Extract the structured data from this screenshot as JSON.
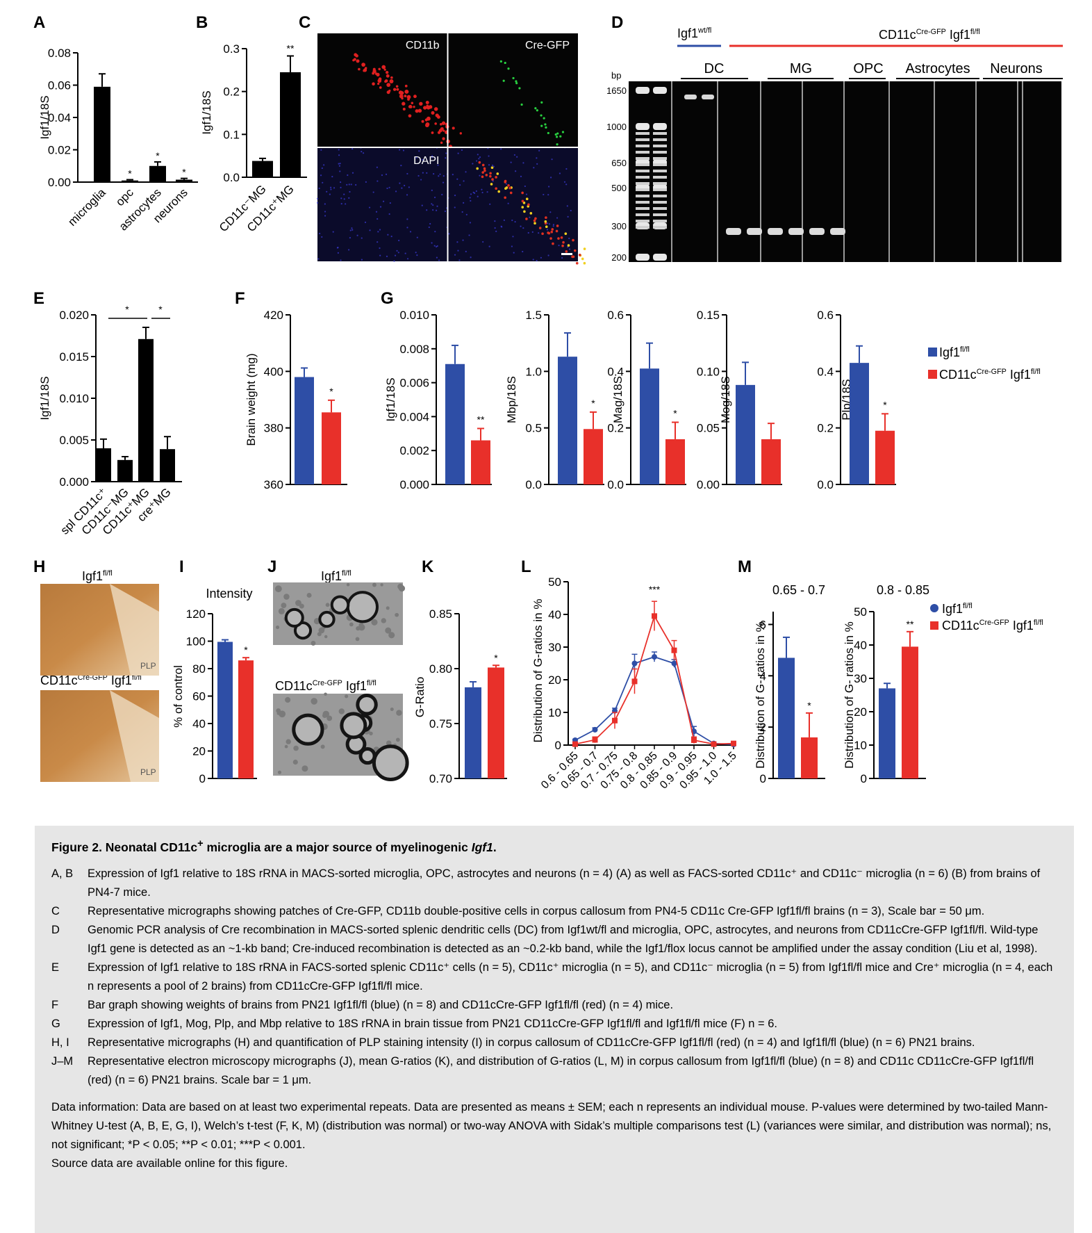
{
  "panels": {
    "A": {
      "label": "A",
      "ylabel": "Igf1/18S",
      "yticks": [
        "0.00",
        "0.02",
        "0.04",
        "0.06",
        "0.08"
      ],
      "ymax": 0.08,
      "categories": [
        "microglia",
        "opc",
        "astrocytes",
        "neurons"
      ],
      "values": [
        0.059,
        0.001,
        0.01,
        0.0015
      ],
      "errors": [
        0.008,
        0.0005,
        0.0025,
        0.0008
      ],
      "sig": [
        "",
        "*",
        "*",
        "*"
      ]
    },
    "B": {
      "label": "B",
      "ylabel": "Igf1/18S",
      "yticks": [
        "0.0",
        "0.1",
        "0.2",
        "0.3"
      ],
      "ymax": 0.3,
      "categories": [
        "CD11c⁻MG",
        "CD11c⁺MG"
      ],
      "values": [
        0.038,
        0.245
      ],
      "errors": [
        0.006,
        0.038
      ],
      "sig": [
        "",
        "**"
      ]
    },
    "C": {
      "label": "C",
      "quadrants": [
        "CD11b",
        "Cre-GFP",
        "DAPI",
        ""
      ]
    },
    "D": {
      "label": "D",
      "wt": "Igf1",
      "wt_sup": "wt/fl",
      "cre": "CD11c",
      "cre_sup": "Cre-GFP",
      "cre_gene": "Igf1",
      "cre_gene_sup": "fl/fl",
      "groups": [
        "DC",
        "MG",
        "OPC",
        "Astrocytes",
        "Neurons"
      ],
      "bp_title": "bp",
      "bp": [
        "1650",
        "1000",
        "650",
        "500",
        "300",
        "200"
      ]
    },
    "E": {
      "label": "E",
      "ylabel": "Igf1/18S",
      "yticks": [
        "0.000",
        "0.005",
        "0.010",
        "0.015",
        "0.020"
      ],
      "ymax": 0.02,
      "categories": [
        "spl CD11c⁺",
        "CD11c⁻MG",
        "CD11c⁺MG",
        "cre⁺MG"
      ],
      "values": [
        0.004,
        0.0026,
        0.0171,
        0.0039
      ],
      "errors": [
        0.0011,
        0.0004,
        0.0014,
        0.0015
      ],
      "sig": [
        "*",
        "*"
      ]
    },
    "F": {
      "label": "F",
      "ylabel": "Brain weight (mg)",
      "yticks": [
        "360",
        "380",
        "400",
        "420"
      ],
      "ymin": 360,
      "ymax": 420,
      "values": [
        398,
        385.5
      ],
      "errors": [
        3.2,
        4.3
      ],
      "sig": [
        "",
        "*"
      ]
    },
    "G": {
      "label": "G",
      "subplots": [
        {
          "ylabel": "Igf1/18S",
          "yticks": [
            "0.000",
            "0.002",
            "0.004",
            "0.006",
            "0.008",
            "0.010"
          ],
          "ymax": 0.01,
          "values": [
            0.0071,
            0.0026
          ],
          "errors": [
            0.0011,
            0.0007
          ],
          "sig": "**"
        },
        {
          "ylabel": "Mbp/18S",
          "yticks": [
            "0.0",
            "0.5",
            "1.0",
            "1.5"
          ],
          "ymax": 1.5,
          "values": [
            1.13,
            0.49
          ],
          "errors": [
            0.21,
            0.15
          ],
          "sig": "*"
        },
        {
          "ylabel": "Mag/18S",
          "yticks": [
            "0.0",
            "0.2",
            "0.4",
            "0.6"
          ],
          "ymax": 0.6,
          "values": [
            0.41,
            0.16
          ],
          "errors": [
            0.09,
            0.06
          ],
          "sig": "*"
        },
        {
          "ylabel": "Mog/18S",
          "yticks": [
            "0.00",
            "0.05",
            "0.10",
            "0.15"
          ],
          "ymax": 0.15,
          "values": [
            0.088,
            0.04
          ],
          "errors": [
            0.02,
            0.014
          ],
          "sig": ""
        },
        {
          "ylabel": "Plp/18S",
          "yticks": [
            "0.0",
            "0.2",
            "0.4",
            "0.6"
          ],
          "ymax": 0.6,
          "values": [
            0.43,
            0.19
          ],
          "errors": [
            0.06,
            0.06
          ],
          "sig": "*"
        }
      ]
    },
    "H": {
      "label": "H",
      "top_title": "Igf1",
      "top_sup": "fl/fl",
      "bot_title": "CD11c",
      "bot_sup": "Cre-GFP",
      "bot_gene": "Igf1",
      "bot_gene_sup": "fl/fl",
      "tag": "PLP"
    },
    "I": {
      "label": "I",
      "title": "Intensity",
      "ylabel": "% of control",
      "yticks": [
        "0",
        "20",
        "40",
        "60",
        "80",
        "100",
        "120"
      ],
      "ymax": 120,
      "values": [
        99.5,
        86
      ],
      "errors": [
        1.5,
        2
      ],
      "sig": [
        "",
        "*"
      ]
    },
    "J": {
      "label": "J",
      "top_title": "Igf1",
      "top_sup": "fl/fl",
      "bot_title": "CD11c",
      "bot_sup": "Cre-GFP",
      "bot_gene": "Igf1",
      "bot_gene_sup": "fl/fl"
    },
    "K": {
      "label": "K",
      "ylabel": "G-Ratio",
      "yticks": [
        "0.70",
        "0.75",
        "0.80",
        "0.85"
      ],
      "ymin": 0.7,
      "ymax": 0.85,
      "values": [
        0.783,
        0.801
      ],
      "errors": [
        0.005,
        0.002
      ],
      "sig": [
        "",
        "*"
      ]
    },
    "L": {
      "label": "L",
      "ylabel": "Distribution of G-ratios in %",
      "yticks": [
        "0",
        "10",
        "20",
        "30",
        "40",
        "50"
      ],
      "ymax": 50,
      "categories": [
        "0.6 - 0.65",
        "0.65 - 0.7",
        "0.7 - 0.75",
        "0.75 - 0.8",
        "0.8 - 0.85",
        "0.85 - 0.9",
        "0.9 - 0.95",
        "0.95 - 1.0",
        "1.0 - 1.5"
      ],
      "sig": "***"
    },
    "M": {
      "label": "M",
      "sub": [
        {
          "title": "0.65 - 0.7",
          "ylabel": "Distribution of G- ratios in %",
          "yticks": [
            "0",
            "2",
            "4",
            "6"
          ],
          "ymax": 6.5,
          "values": [
            4.7,
            1.6
          ],
          "errors": [
            0.8,
            0.95
          ],
          "sig": "*"
        },
        {
          "title": "0.8 - 0.85",
          "ylabel": "Distribution of G- ratios in %",
          "yticks": [
            "0",
            "10",
            "20",
            "30",
            "40",
            "50"
          ],
          "ymax": 50,
          "values": [
            27,
            39.5
          ],
          "errors": [
            1.5,
            4.5
          ],
          "sig": "**"
        }
      ]
    }
  },
  "chart_data": [
    {
      "type": "bar",
      "panel": "A",
      "categories": [
        "microglia",
        "opc",
        "astrocytes",
        "neurons"
      ],
      "values": [
        0.059,
        0.001,
        0.01,
        0.0015
      ],
      "ylabel": "Igf1/18S",
      "ylim": [
        0,
        0.08
      ]
    },
    {
      "type": "bar",
      "panel": "B",
      "categories": [
        "CD11c⁻MG",
        "CD11c⁺MG"
      ],
      "values": [
        0.038,
        0.245
      ],
      "ylabel": "Igf1/18S",
      "ylim": [
        0,
        0.3
      ]
    },
    {
      "type": "bar",
      "panel": "E",
      "categories": [
        "spl CD11c⁺",
        "CD11c⁻MG",
        "CD11c⁺MG",
        "cre⁺MG"
      ],
      "values": [
        0.004,
        0.0026,
        0.0171,
        0.0039
      ],
      "ylabel": "Igf1/18S",
      "ylim": [
        0,
        0.02
      ]
    },
    {
      "type": "bar",
      "panel": "F",
      "series": [
        {
          "name": "Igf1 fl/fl",
          "values": [
            398
          ]
        },
        {
          "name": "CD11c Cre-GFP Igf1 fl/fl",
          "values": [
            385.5
          ]
        }
      ],
      "ylabel": "Brain weight (mg)",
      "ylim": [
        360,
        420
      ]
    },
    {
      "type": "bar",
      "panel": "G",
      "categories": [
        "Igf1/18S",
        "Mbp/18S",
        "Mag/18S",
        "Mog/18S",
        "Plp/18S"
      ],
      "series": [
        {
          "name": "Igf1 fl/fl",
          "values": [
            0.0071,
            1.13,
            0.41,
            0.088,
            0.43
          ]
        },
        {
          "name": "CD11c Cre-GFP Igf1 fl/fl",
          "values": [
            0.0026,
            0.49,
            0.16,
            0.04,
            0.19
          ]
        }
      ]
    },
    {
      "type": "bar",
      "panel": "I",
      "series": [
        {
          "name": "Igf1 fl/fl",
          "values": [
            99.5
          ]
        },
        {
          "name": "CD11c Cre-GFP Igf1 fl/fl",
          "values": [
            86
          ]
        }
      ],
      "title": "Intensity",
      "ylabel": "% of control",
      "ylim": [
        0,
        120
      ]
    },
    {
      "type": "bar",
      "panel": "K",
      "series": [
        {
          "name": "Igf1 fl/fl",
          "values": [
            0.783
          ]
        },
        {
          "name": "CD11c Cre-GFP Igf1 fl/fl",
          "values": [
            0.801
          ]
        }
      ],
      "ylabel": "G-Ratio",
      "ylim": [
        0.7,
        0.85
      ]
    },
    {
      "type": "line",
      "panel": "L",
      "categories": [
        "0.6 - 0.65",
        "0.65 - 0.7",
        "0.7 - 0.75",
        "0.75 - 0.8",
        "0.8 - 0.85",
        "0.85 - 0.9",
        "0.9 - 0.95",
        "0.95 - 1.0",
        "1.0 - 1.5"
      ],
      "series": [
        {
          "name": "Igf1 fl/fl",
          "values": [
            1.5,
            4.7,
            10.5,
            25,
            27,
            25,
            4.2,
            0.5,
            0.2
          ],
          "errors": [
            0.3,
            0.6,
            0.8,
            2.8,
            1.5,
            1.2,
            1.5,
            0.3,
            0.2
          ]
        },
        {
          "name": "CD11c Cre-GFP Igf1 fl/fl",
          "values": [
            0.3,
            1.6,
            7.5,
            19.5,
            39.5,
            29,
            1.5,
            0.3,
            0.5
          ],
          "errors": [
            0.3,
            0.9,
            2.5,
            3.8,
            4.5,
            3,
            1,
            0.3,
            0.3
          ]
        }
      ],
      "ylabel": "Distribution of G-ratios in %",
      "ylim": [
        0,
        50
      ]
    },
    {
      "type": "bar",
      "panel": "M",
      "title": "0.65 - 0.7",
      "series": [
        {
          "name": "Igf1 fl/fl",
          "values": [
            4.7
          ]
        },
        {
          "name": "CD11c Cre-GFP Igf1 fl/fl",
          "values": [
            1.6
          ]
        }
      ],
      "ylabel": "Distribution of G- ratios in %",
      "ylim": [
        0,
        6.5
      ]
    },
    {
      "type": "bar",
      "panel": "M",
      "title": "0.8 - 0.85",
      "series": [
        {
          "name": "Igf1 fl/fl",
          "values": [
            27
          ]
        },
        {
          "name": "CD11c Cre-GFP Igf1 fl/fl",
          "values": [
            39.5
          ]
        }
      ],
      "ylabel": "Distribution of G- ratios in %",
      "ylim": [
        0,
        50
      ]
    }
  ],
  "legend": {
    "a": "Igf1",
    "a_sup": "fl/fl",
    "b": "CD11c",
    "b_sup": "Cre-GFP",
    "b_gene": "Igf1",
    "b_gene_sup": "fl/fl"
  },
  "colors": {
    "blue": "#2e4ea6",
    "red": "#e8302a",
    "black": "#000000"
  },
  "caption": {
    "title_prefix": "Figure 2.   Neonatal CD11c",
    "title_sup": "+",
    "title_mid": " microglia are a major source of myelinogenic ",
    "title_gene": "Igf1",
    "title_end": ".",
    "rows": [
      {
        "label": "A, B",
        "text": "Expression of Igf1 relative to 18S rRNA in MACS-sorted microglia, OPC, astrocytes and neurons (n = 4) (A) as well as FACS-sorted CD11c⁺ and CD11c⁻ microglia (n = 6) (B) from brains of PN4-7 mice."
      },
      {
        "label": "C",
        "text": "Representative micrographs showing patches of Cre-GFP, CD11b double-positive cells in corpus callosum from PN4-5 CD11c Cre-GFP Igf1fl/fl brains (n = 3), Scale bar = 50 μm."
      },
      {
        "label": "D",
        "text": "Genomic PCR analysis of Cre recombination in MACS-sorted splenic dendritic cells (DC) from Igf1wt/fl and microglia, OPC, astrocytes, and neurons from CD11cCre-GFP Igf1fl/fl. Wild-type Igf1 gene is detected as an ~1-kb band; Cre-induced recombination is detected as an ~0.2-kb band, while the Igf1/flox locus cannot be amplified under the assay condition (Liu et al, 1998)."
      },
      {
        "label": "E",
        "text": "Expression of Igf1 relative to 18S rRNA in FACS-sorted splenic CD11c⁺ cells (n = 5), CD11c⁺ microglia (n = 5), and CD11c⁻ microglia (n = 5) from Igf1fl/fl mice and Cre⁺ microglia (n = 4, each n represents a pool of 2 brains) from CD11cCre-GFP Igf1fl/fl mice."
      },
      {
        "label": "F",
        "text": "Bar graph showing weights of brains from PN21 Igf1fl/fl (blue) (n = 8) and CD11cCre-GFP Igf1fl/fl (red) (n = 4) mice."
      },
      {
        "label": "G",
        "text": "Expression of Igf1, Mog, Plp, and Mbp relative to 18S rRNA in brain tissue from PN21 CD11cCre-GFP Igf1fl/fl and Igf1fl/fl mice (F) n = 6."
      },
      {
        "label": "H, I",
        "text": "Representative micrographs (H) and quantification of PLP staining intensity (I) in corpus callosum of CD11cCre-GFP Igf1fl/fl (red) (n = 4) and Igf1fl/fl (blue) (n = 6) PN21 brains."
      },
      {
        "label": "J–M",
        "text": "Representative electron microscopy micrographs (J), mean G-ratios (K), and distribution of G-ratios (L, M) in corpus callosum from Igf1fl/fl (blue) (n = 8) and CD11c CD11cCre-GFP Igf1fl/fl (red) (n = 6) PN21 brains. Scale bar = 1 μm."
      }
    ],
    "data_info": "Data information: Data are based on at least two experimental repeats. Data are presented as means ± SEM; each n represents an individual mouse. P-values were determined by two-tailed Mann-Whitney U-test (A, B, E, G, I), Welch’s t-test (F, K, M) (distribution was normal) or two-way ANOVA with Sidak’s multiple comparisons test (L) (variances were similar, and distribution was normal); ns, not significant; *P < 0.05; **P < 0.01; ***P < 0.001.",
    "source": "Source data are available online for this figure."
  }
}
